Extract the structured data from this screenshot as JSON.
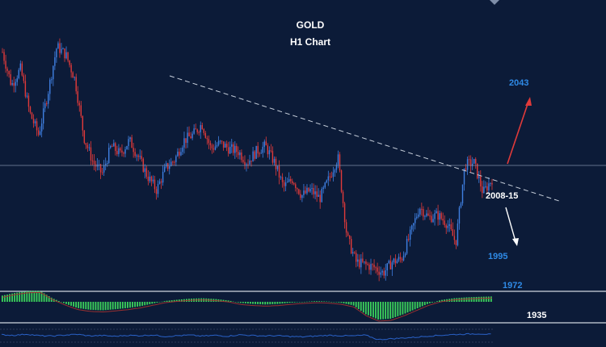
{
  "chart_data": {
    "type": "candlestick",
    "title": "GOLD",
    "subtitle": "H1 Chart",
    "colors": {
      "background": "#0c1b38",
      "bull": "#3f7fe0",
      "bear": "#e03a3a",
      "trendline": "#c8d0dc",
      "horizontal_line": "#7f8ea8",
      "histogram": "#3bd15b",
      "label_blue": "#2f8ae6",
      "label_white": "#ffffff",
      "arrow_up": "#e03a3a",
      "arrow_down": "#ffffff",
      "rsi_line": "#2a62c8"
    },
    "price_path": [
      2062,
      2050,
      2056,
      2040,
      2032,
      2047,
      2064,
      2061,
      2052,
      2031,
      2022,
      2018,
      2028,
      2025,
      2030,
      2024,
      2017,
      2012,
      2020,
      2023,
      2030,
      2032,
      2036,
      2027,
      2029,
      2027,
      2026,
      2022,
      2026,
      2028,
      2022,
      2013,
      2016,
      2010,
      2012,
      2009,
      2016,
      2024,
      1995,
      1986,
      1985,
      1984,
      1982,
      1986,
      1987,
      1996,
      2006,
      2002,
      2003,
      2000,
      1993,
      2021,
      2022,
      2011,
      2016
    ],
    "annotations": {
      "resistance_top": "2043",
      "pivot": "2008-15",
      "support_1": "1995",
      "support_2": "1972",
      "support_3": "1935"
    },
    "histogram_values": [
      0.35,
      0.5,
      0.6,
      0.62,
      0.2,
      -0.1,
      -0.35,
      -0.45,
      -0.48,
      -0.42,
      -0.35,
      -0.25,
      -0.1,
      0.05,
      0.12,
      0.18,
      0.2,
      0.16,
      0.08,
      -0.06,
      -0.12,
      -0.15,
      -0.12,
      -0.05,
      0.0,
      0.04,
      0.02,
      -0.05,
      -0.2,
      -0.7,
      -1.0,
      -0.95,
      -0.7,
      -0.4,
      -0.1,
      0.1,
      0.2,
      0.25,
      0.28,
      0.3
    ],
    "rsi_values": [
      55,
      52,
      58,
      50,
      48,
      53,
      57,
      49,
      51,
      47,
      52,
      50,
      54,
      46,
      50,
      53,
      48,
      52,
      47,
      55,
      51,
      49,
      50,
      46,
      44,
      48,
      52,
      50,
      49,
      53,
      30,
      34,
      38,
      42,
      48,
      52,
      56,
      58,
      60,
      57
    ]
  }
}
